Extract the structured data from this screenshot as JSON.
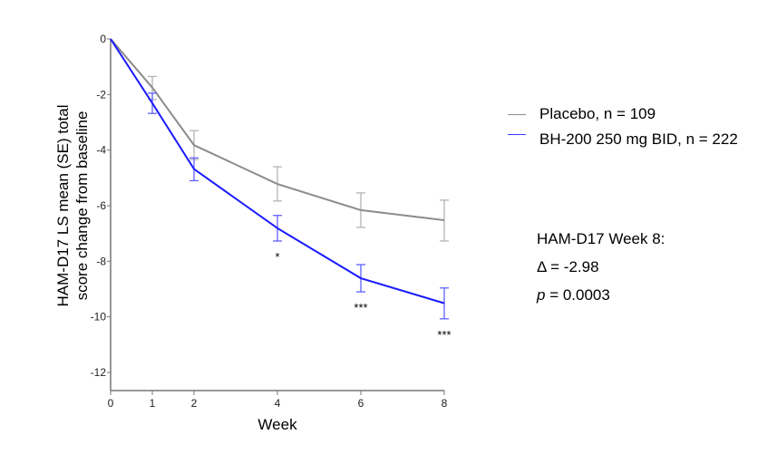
{
  "chart_data": {
    "type": "line",
    "xlabel": "Week",
    "ylabel_lines": [
      "HAM-D17 LS mean (SE) total",
      "score change from baseline"
    ],
    "xlim": [
      0,
      8
    ],
    "ylim": [
      -12,
      0
    ],
    "x_ticks": [
      0,
      1,
      2,
      4,
      6,
      8
    ],
    "y_ticks": [
      0,
      -2,
      -4,
      -6,
      -8,
      -10,
      -12
    ],
    "grid": false,
    "legend_position": "right",
    "series": [
      {
        "name": "Placebo, n = 109",
        "color": "#8c8c8c",
        "errcolor": "#b4b4b4",
        "x": [
          0,
          1,
          2,
          4,
          6,
          8
        ],
        "y": [
          0,
          -1.75,
          -3.82,
          -5.22,
          -6.16,
          -6.52
        ],
        "err_low": [
          0,
          -2.18,
          -4.34,
          -5.83,
          -6.78,
          -7.27
        ],
        "err_high": [
          0,
          -1.35,
          -3.3,
          -4.6,
          -5.54,
          -5.8
        ]
      },
      {
        "name": "BH-200 250 mg BID, n = 222",
        "color": "#1a1aff",
        "errcolor": "#6060ff",
        "x": [
          0,
          1,
          2,
          4,
          6,
          8
        ],
        "y": [
          0,
          -2.31,
          -4.68,
          -6.81,
          -8.61,
          -9.51
        ],
        "err_low": [
          0,
          -2.68,
          -5.1,
          -7.27,
          -9.1,
          -10.07
        ],
        "err_high": [
          0,
          -1.95,
          -4.28,
          -6.35,
          -8.12,
          -8.96
        ]
      }
    ],
    "significance": [
      {
        "x": 4,
        "label": "*"
      },
      {
        "x": 6,
        "label": "***"
      },
      {
        "x": 8,
        "label": "***"
      }
    ],
    "annotation": {
      "title": "HAM-D17 Week 8:",
      "delta": "Δ = -2.98",
      "p_label": "p",
      "p_value": " = 0.0003"
    }
  }
}
